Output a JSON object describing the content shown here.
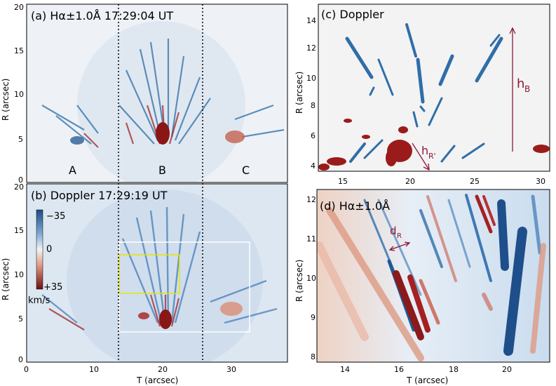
{
  "panels": {
    "a": {
      "label": "(a) Hα±1.0Å  17:29:04 UT",
      "regions": [
        "A",
        "B",
        "C"
      ]
    },
    "b": {
      "label": "(b) Doppler  17:29:19 UT",
      "colorbar": {
        "top": "−35",
        "mid": "0",
        "bottom": "+35",
        "unit": "km/s"
      }
    },
    "c": {
      "label": "(c) Doppler",
      "annotations": {
        "hB": "h",
        "hB_sub": "B",
        "hR": "h",
        "hR_sub": "R'"
      }
    },
    "d": {
      "label": "(d) Hα±1.0Å",
      "annotations": {
        "dR": "d",
        "dR_sub": "R"
      }
    }
  },
  "axes": {
    "left": {
      "ylabel": "R (arcsec)",
      "xlabel": "T (arcsec)",
      "a_yticks": [
        "0",
        "5",
        "10",
        "15",
        "20"
      ],
      "b_yticks": [
        "0",
        "5",
        "10",
        "15",
        "20"
      ],
      "xticks": [
        "0",
        "10",
        "20",
        "30"
      ]
    },
    "c": {
      "ylabel": "R (arcsec)",
      "yticks": [
        "4",
        "6",
        "8",
        "10",
        "12",
        "14"
      ],
      "xticks": [
        "15",
        "20",
        "25",
        "30"
      ]
    },
    "d": {
      "ylabel": "R (arcsec)",
      "xlabel": "T (arcsec)",
      "yticks": [
        "8",
        "9",
        "10",
        "11",
        "12"
      ],
      "xticks": [
        "14",
        "16",
        "18",
        "20"
      ]
    }
  },
  "colors": {
    "blue": "#2f6ea8",
    "red": "#9b1b1b",
    "maroon": "#8b1a3a",
    "yellow": "#e6e600"
  }
}
